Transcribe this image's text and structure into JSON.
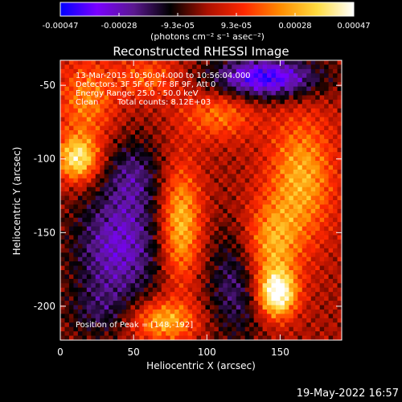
{
  "chart_data": {
    "type": "heatmap",
    "title": "Reconstructed RHESSI Image",
    "xlabel": "Heliocentric X (arcsec)",
    "ylabel": "Heliocentric Y (arcsec)",
    "xlim": [
      0,
      192
    ],
    "ylim": [
      -223,
      -33
    ],
    "x_ticks": [
      0,
      50,
      100,
      150
    ],
    "y_ticks": [
      -50,
      -100,
      -150,
      -200
    ],
    "colorbar": {
      "label": "(photons cm⁻² s⁻¹ asec⁻²)",
      "range": [
        -0.00047,
        0.00047
      ],
      "ticks": [
        "-0.00047",
        "-0.00028",
        "-9.3e-05",
        "9.3e-05",
        "0.00028",
        "0.00047"
      ],
      "colors": [
        "#0000ff",
        "#7a00ff",
        "#5a1890",
        "#000000",
        "#aa1000",
        "#ff2800",
        "#ff8c00",
        "#ffdc40",
        "#ffffff"
      ]
    },
    "annotations": {
      "time_range": "13-Mar-2015 10:50:04.000 to 10:56:04.000",
      "detectors": "Detectors: 3F 5F 6F 7F 8F 9F, Att 0",
      "energy": "Energy Range: 25.0 - 50.0 keV",
      "method": "Clean",
      "counts": "Total counts: 8.12E+03",
      "peak": "Position of Peak = [148,-192]"
    },
    "peak": {
      "x": 148,
      "y": -192
    },
    "sources": [
      {
        "x": 148,
        "y": -192,
        "amp": 0.00047,
        "sx": 9,
        "sy": 11
      },
      {
        "x": 143,
        "y": -160,
        "amp": 0.00028,
        "sx": 14,
        "sy": 22
      },
      {
        "x": 165,
        "y": -112,
        "amp": 0.00028,
        "sx": 16,
        "sy": 30
      },
      {
        "x": 12,
        "y": -100,
        "amp": 0.0004,
        "sx": 10,
        "sy": 11
      },
      {
        "x": 18,
        "y": -60,
        "amp": 0.00022,
        "sx": 14,
        "sy": 20
      },
      {
        "x": 82,
        "y": -145,
        "amp": 0.00034,
        "sx": 10,
        "sy": 28
      },
      {
        "x": 70,
        "y": -210,
        "amp": 0.0003,
        "sx": 16,
        "sy": 10
      },
      {
        "x": 108,
        "y": -70,
        "amp": 0.0002,
        "sx": 18,
        "sy": 12
      },
      {
        "x": 60,
        "y": -45,
        "amp": 0.00018,
        "sx": 16,
        "sy": 10
      },
      {
        "x": 40,
        "y": -160,
        "amp": -0.0003,
        "sx": 22,
        "sy": 28
      },
      {
        "x": 140,
        "y": -45,
        "amp": -0.00042,
        "sx": 26,
        "sy": 10
      },
      {
        "x": 120,
        "y": -185,
        "amp": -0.00022,
        "sx": 14,
        "sy": 28
      },
      {
        "x": 50,
        "y": -110,
        "amp": -0.00018,
        "sx": 14,
        "sy": 18
      },
      {
        "x": 25,
        "y": -205,
        "amp": -0.00012,
        "sx": 16,
        "sy": 14
      }
    ]
  },
  "footer": {
    "date": "19-May-2022 16:57"
  }
}
